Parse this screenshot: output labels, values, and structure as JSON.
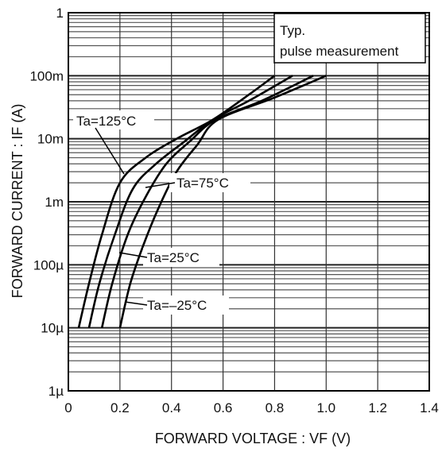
{
  "chart_data": {
    "type": "line",
    "title": "",
    "xlabel": "FORWARD VOLTAGE : VF (V)",
    "ylabel": "FORWARD CURRENT : IF (A)",
    "xlim": [
      0,
      1.4
    ],
    "ylim": [
      "1µ",
      "1"
    ],
    "y_scale": "log",
    "grid": true,
    "x_ticks": [
      "0",
      "0.2",
      "0.4",
      "0.6",
      "0.8",
      "1.0",
      "1.2",
      "1.4"
    ],
    "y_ticks": [
      "1µ",
      "10µ",
      "100µ",
      "1m",
      "10m",
      "100m",
      "1"
    ],
    "note": [
      "Typ.",
      "pulse measurement"
    ],
    "series": [
      {
        "name": "Ta=125°C",
        "x": [
          0.04,
          0.08,
          0.13,
          0.2,
          0.3,
          0.42,
          0.56,
          0.7,
          0.8
        ],
        "y": [
          1e-05,
          5e-05,
          0.0003,
          0.002,
          0.005,
          0.01,
          0.02,
          0.05,
          0.1
        ]
      },
      {
        "name": "Ta=75°C",
        "x": [
          0.08,
          0.12,
          0.18,
          0.25,
          0.34,
          0.45,
          0.56,
          0.7,
          0.87
        ],
        "y": [
          1e-05,
          5e-05,
          0.0003,
          0.0016,
          0.004,
          0.009,
          0.02,
          0.04,
          0.1
        ]
      },
      {
        "name": "Ta=25°C",
        "x": [
          0.13,
          0.17,
          0.23,
          0.3,
          0.38,
          0.47,
          0.57,
          0.75,
          0.95
        ],
        "y": [
          1e-05,
          5e-05,
          0.0003,
          0.0012,
          0.004,
          0.009,
          0.02,
          0.04,
          0.1
        ]
      },
      {
        "name": "Ta=–25°C",
        "x": [
          0.2,
          0.24,
          0.29,
          0.35,
          0.42,
          0.5,
          0.58,
          0.8,
          1.0
        ],
        "y": [
          1e-05,
          5e-05,
          0.0002,
          0.0008,
          0.003,
          0.008,
          0.02,
          0.045,
          0.1
        ]
      }
    ]
  }
}
